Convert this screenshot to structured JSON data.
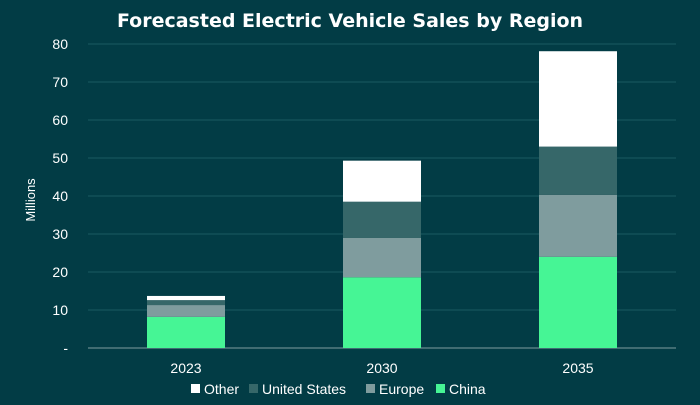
{
  "chart_data": {
    "type": "bar",
    "stacked": true,
    "title": "Forecasted Electric Vehicle Sales by Region",
    "xlabel": "",
    "ylabel": "Millions",
    "ylim": [
      0,
      80
    ],
    "yticks": [
      0,
      10,
      20,
      30,
      40,
      50,
      60,
      70,
      80
    ],
    "ytick_labels": [
      "-",
      "10",
      "20",
      "30",
      "40",
      "50",
      "60",
      "70",
      "80"
    ],
    "grid": true,
    "legend_position": "bottom",
    "categories": [
      "2023",
      "2030",
      "2035"
    ],
    "series": [
      {
        "name": "China",
        "color": "#46f595",
        "values": [
          8.2,
          18.6,
          24.0
        ]
      },
      {
        "name": "Europe",
        "color": "#7f9c9e",
        "values": [
          3.1,
          10.4,
          16.3
        ]
      },
      {
        "name": "United States",
        "color": "#366769",
        "values": [
          1.3,
          9.5,
          12.7
        ]
      },
      {
        "name": "Other",
        "color": "#ffffff",
        "values": [
          1.1,
          10.8,
          25.1
        ]
      }
    ],
    "legend_order": [
      "Other",
      "United States",
      "Europe",
      "China"
    ],
    "colors": {
      "background": "#023c45",
      "grid": "#1b5a61",
      "text": "#ffffff"
    }
  }
}
